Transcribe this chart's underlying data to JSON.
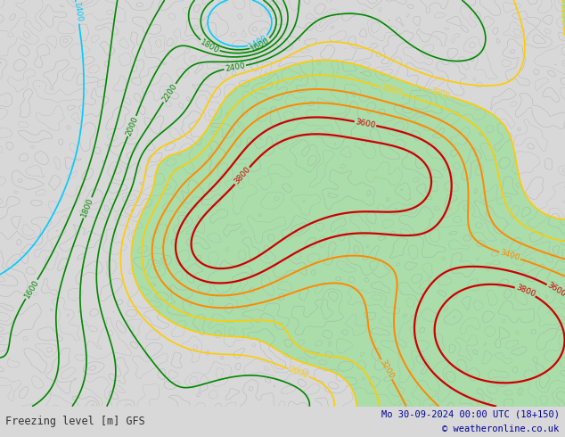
{
  "title_left": "Freezing level [m] GFS",
  "title_right": "Mo 30-09-2024 00:00 UTC (18+150)",
  "copyright": "© weatheronline.co.uk",
  "bg_color": "#d8d8d8",
  "map_bg": "#d8d8d8",
  "fig_width": 6.34,
  "fig_height": 4.9,
  "contour_levels": [
    1400,
    1600,
    1800,
    2000,
    2200,
    2400,
    2600,
    2800,
    3000,
    3200,
    3400,
    3600,
    3800
  ],
  "contour_colors": {
    "1400": "#00ccff",
    "1600": "#008800",
    "1800": "#008800",
    "2000": "#008800",
    "2200": "#008800",
    "2400": "#008800",
    "2600": "#ffcc00",
    "2800": "#ffcc00",
    "3000": "#ffcc00",
    "3200": "#ff8800",
    "3400": "#ff8800",
    "3600": "#cc0000",
    "3800": "#cc0000"
  },
  "fill_color": "#aaddaa",
  "fill_threshold": 2800,
  "coastline_color": "#999999",
  "font_color_left": "#333333",
  "font_color_right": "#000099",
  "font_color_copy": "#000099",
  "bar_color": "#cccccc"
}
